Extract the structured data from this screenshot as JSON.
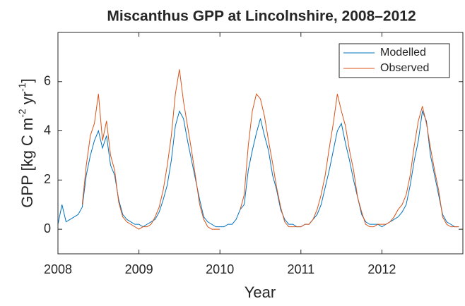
{
  "chart_data": {
    "type": "line",
    "title": "Miscanthus GPP at Lincolnshire, 2008–2012",
    "xlabel": "Year",
    "ylabel_parts": [
      "GPP [kg C m",
      "-2",
      " yr",
      "-1",
      "]"
    ],
    "x": [
      2008,
      2008.05,
      2008.1,
      2008.15,
      2008.2,
      2008.25,
      2008.3,
      2008.35,
      2008.4,
      2008.45,
      2008.5,
      2008.55,
      2008.6,
      2008.65,
      2008.7,
      2008.75,
      2008.8,
      2008.85,
      2008.9,
      2008.95,
      2009,
      2009.05,
      2009.1,
      2009.15,
      2009.2,
      2009.25,
      2009.3,
      2009.35,
      2009.4,
      2009.45,
      2009.5,
      2009.55,
      2009.6,
      2009.65,
      2009.7,
      2009.75,
      2009.8,
      2009.85,
      2009.9,
      2009.95,
      2010,
      2010.05,
      2010.1,
      2010.15,
      2010.2,
      2010.25,
      2010.3,
      2010.35,
      2010.4,
      2010.45,
      2010.5,
      2010.55,
      2010.6,
      2010.65,
      2010.7,
      2010.75,
      2010.8,
      2010.85,
      2010.9,
      2010.95,
      2011,
      2011.05,
      2011.1,
      2011.15,
      2011.2,
      2011.25,
      2011.3,
      2011.35,
      2011.4,
      2011.45,
      2011.5,
      2011.55,
      2011.6,
      2011.65,
      2011.7,
      2011.75,
      2011.8,
      2011.85,
      2011.9,
      2011.95,
      2012,
      2012.05,
      2012.1,
      2012.15,
      2012.2,
      2012.25,
      2012.3,
      2012.35,
      2012.4,
      2012.45,
      2012.5,
      2012.55,
      2012.6,
      2012.65,
      2012.7,
      2012.75,
      2012.8,
      2012.85,
      2012.9,
      2012.95
    ],
    "series": [
      {
        "name": "Modelled",
        "color": "#0072bd",
        "values": [
          0.2,
          1.0,
          0.3,
          0.4,
          0.5,
          0.6,
          0.9,
          2.2,
          3.0,
          3.6,
          4.0,
          3.3,
          3.8,
          2.6,
          2.2,
          1.2,
          0.6,
          0.4,
          0.3,
          0.2,
          0.2,
          0.1,
          0.2,
          0.3,
          0.4,
          0.7,
          1.2,
          1.8,
          2.8,
          4.2,
          4.8,
          4.5,
          3.6,
          2.8,
          2.0,
          1.2,
          0.5,
          0.3,
          0.2,
          0.1,
          0.1,
          0.1,
          0.2,
          0.2,
          0.4,
          0.8,
          1.0,
          2.4,
          3.2,
          3.9,
          4.5,
          3.8,
          3.2,
          2.2,
          1.6,
          0.8,
          0.4,
          0.2,
          0.2,
          0.1,
          0.1,
          0.2,
          0.2,
          0.4,
          0.6,
          1.0,
          1.7,
          2.4,
          3.2,
          4.0,
          4.3,
          3.5,
          2.8,
          2.0,
          1.3,
          0.6,
          0.3,
          0.2,
          0.2,
          0.2,
          0.1,
          0.2,
          0.3,
          0.4,
          0.5,
          0.7,
          1.0,
          1.8,
          2.8,
          3.6,
          4.8,
          4.4,
          3.0,
          2.2,
          1.4,
          0.6,
          0.3,
          0.2,
          0.1,
          0.1
        ]
      },
      {
        "name": "Observed",
        "color": "#d95319",
        "values": [
          null,
          null,
          null,
          null,
          null,
          null,
          1.0,
          2.6,
          3.8,
          4.3,
          5.5,
          3.6,
          4.4,
          3.0,
          2.4,
          1.1,
          0.5,
          0.3,
          0.2,
          0.1,
          0.0,
          0.1,
          0.1,
          0.2,
          0.5,
          0.9,
          1.6,
          2.6,
          3.8,
          5.5,
          6.5,
          5.2,
          4.2,
          3.2,
          2.1,
          1.0,
          0.4,
          0.1,
          0.0,
          0.0,
          0.0,
          null,
          null,
          null,
          null,
          0.8,
          1.4,
          3.4,
          4.8,
          5.5,
          5.3,
          4.6,
          3.6,
          2.7,
          1.7,
          0.9,
          0.3,
          0.1,
          0.1,
          0.1,
          0.1,
          0.2,
          0.2,
          0.4,
          0.8,
          1.4,
          2.2,
          3.3,
          4.3,
          5.5,
          4.8,
          4.2,
          3.2,
          2.4,
          1.3,
          0.7,
          0.2,
          0.1,
          0.1,
          0.2,
          0.2,
          0.2,
          0.3,
          0.5,
          0.8,
          1.0,
          1.4,
          2.2,
          3.4,
          4.4,
          5.0,
          4.3,
          3.3,
          2.4,
          1.6,
          0.5,
          0.2,
          0.1,
          0.1,
          0.1
        ]
      }
    ],
    "xlim": [
      2008,
      2013
    ],
    "xticks": [
      2008,
      2009,
      2010,
      2011,
      2012
    ],
    "ylim": [
      -1,
      8
    ],
    "yticks": [
      0,
      2,
      4,
      6
    ],
    "legend": "upper right",
    "grid": false
  }
}
